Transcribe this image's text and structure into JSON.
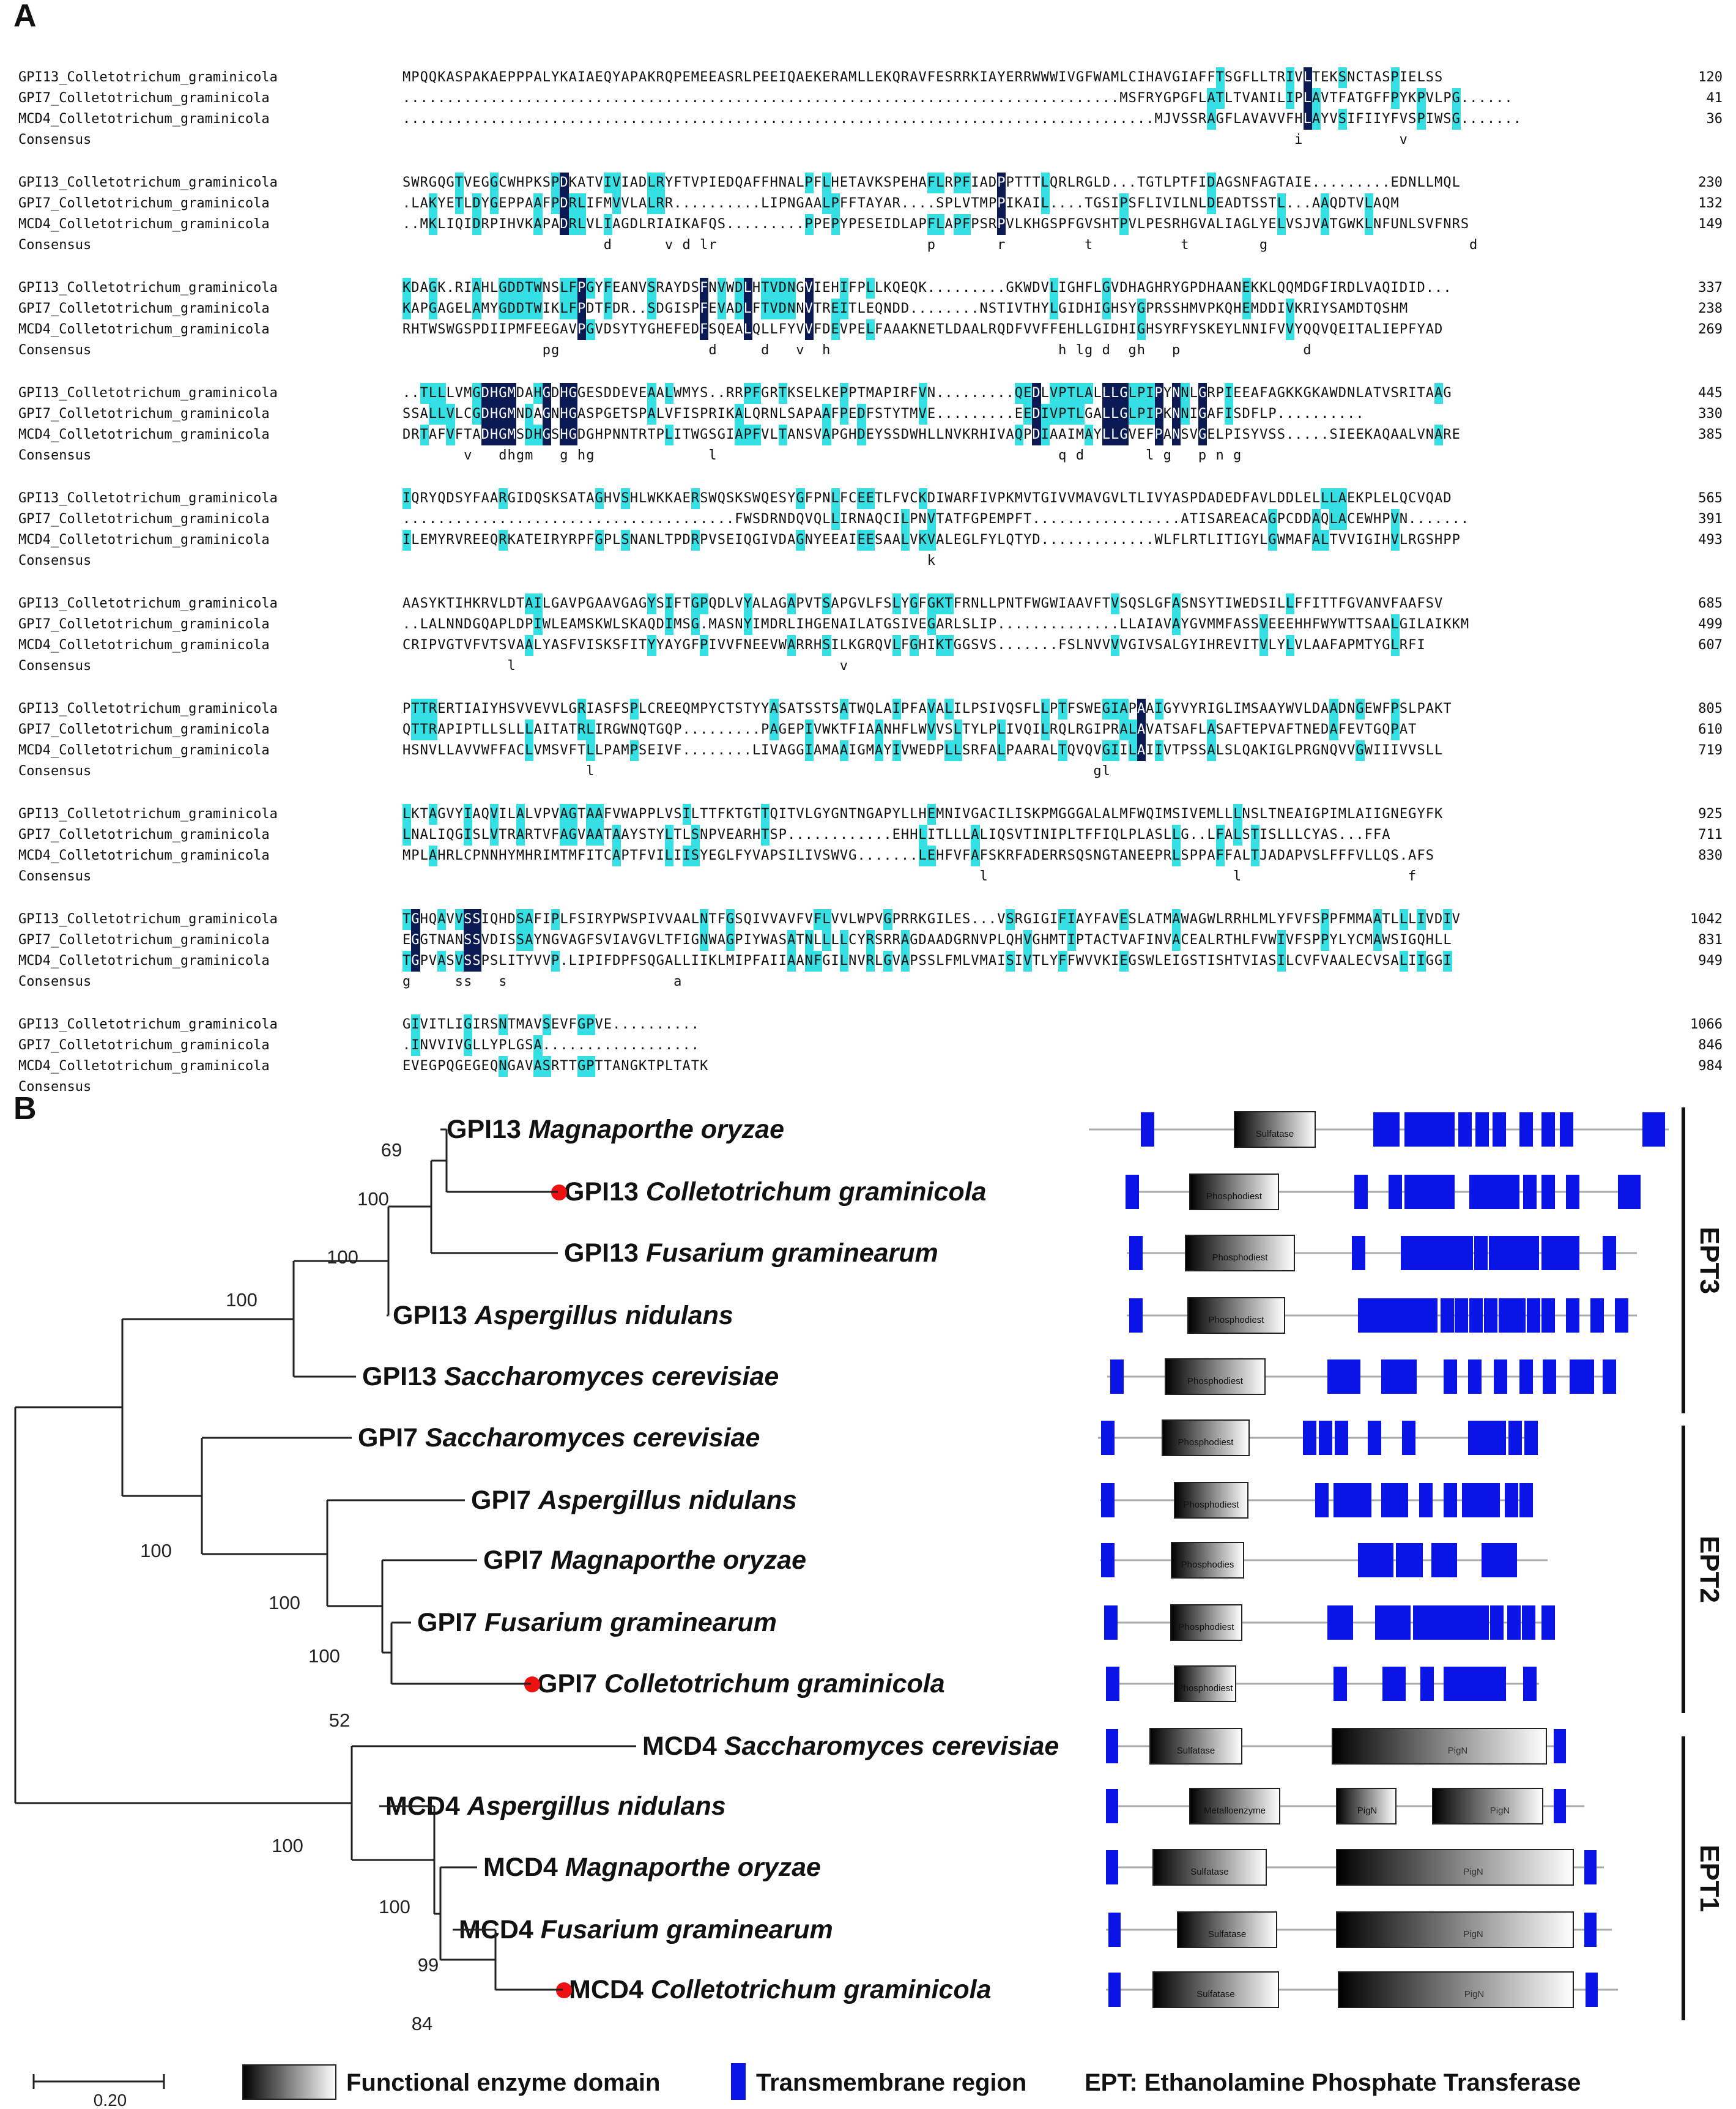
{
  "panel_a": {
    "label": "A",
    "blocks": [
      {
        "rows": [
          {
            "name": "GPI13_Colletotrichum_graminicola",
            "seq": "MPQQKASPAKAEPPPALYKAIAEQYAPAKRQPEMEEASRLPEEIQAEKERAMLLEKQRAVFESRRKIAYERRWWWIVGFWAMLCIHAVGIAFFTSGFLLTRIVLTEKSNCTASPIELSS",
            "num": "120"
          },
          {
            "name": "GPI7_Colletotrichum_graminicola",
            "seq": "..................................................................................MSFRYGPGFLATLTVANILIPLAVTFATGFFPYKPVLPG......",
            "num": "41"
          },
          {
            "name": "MCD4_Colletotrichum_graminicola",
            "seq": "......................................................................................MJVSSRAGFLAVAVVFHLAYVSIFIIYFVSPIWSG.......",
            "num": "36"
          },
          {
            "name": "Consensus",
            "seq": "                                                                                                      i           v        ",
            "num": ""
          }
        ]
      },
      {
        "rows": [
          {
            "name": "GPI13_Colletotrichum_graminicola",
            "seq": "SWRGQGTVEGGCWHPKSPDKATVIVIADLRYFTVPIEDQAFFHNALPFLHETAVKSPEHAFLRPFIADPPTTTLQRLRGLD...TGTLPTFIDAGSNFAGTAIE.........EDNLLMQL",
            "num": "230"
          },
          {
            "name": "GPI7_Colletotrichum_graminicola",
            "seq": ".LAKYETLDYGEPPAAFPDRLIFMVVLALRR..........LIPNGAALPFFTAYAR....SPLVTMPPIKAIL....TGSIPSFLIVILNLDEADTSSTL...AAQDTVLAQM",
            "num": "132"
          },
          {
            "name": "MCD4_Colletotrichum_graminicola",
            "seq": "..MKLIQIDRPIHVKAPADRLVLIAGDLRIAIKAFQS.........PPEPYPESEIDLAPFLAPFPSRPVLKHGSPFGVSHTPVLPESRHGVALIAGLYELVSJVATGWKLNFUNLSVFNRS",
            "num": "149"
          },
          {
            "name": "Consensus",
            "seq": "                       d      v d lr                        p       r         t          t        g                       d  ",
            "num": ""
          }
        ]
      },
      {
        "rows": [
          {
            "name": "GPI13_Colletotrichum_graminicola",
            "seq": "KDAGK.RIAHLGDDTWNSLFPGYFEANVSRAYDSFNVWDLHTVDNGVIEHIFPLLKQEQK.........GKWDVLIGHFLGVDHAGHRYGPDHAANEKKLQQMDGFIRDLVAQIDID...",
            "num": "337"
          },
          {
            "name": "GPI7_Colletotrichum_graminicola",
            "seq": "KAPGAGELAMYGDDTWIKLFPDTFDR..SDGISPFEVADLFTVDNNVTREITLEQNDD........NSTIVTHYLGIDHIGHSYGPRSSHMVPKQHEMDDIVKRIYSAMDTQSHM",
            "num": "238"
          },
          {
            "name": "MCD4_Colletotrichum_graminicola",
            "seq": "RHTWSWGSPDIIPMFEEGAVPGVDSYTYGHEFEDFSQEALQLLFYVVFDEVPELFAAAKNETLDAALRQDFVVFFEHLLGIDHIGHSYRFYSKEYLNNIFVVYQQVQEITALIEPFYAD",
            "num": "269"
          },
          {
            "name": "Consensus",
            "seq": "                pg                 d     d   v  h                          h lg d  gh   p              d                  ",
            "num": ""
          }
        ]
      },
      {
        "rows": [
          {
            "name": "GPI13_Colletotrichum_graminicola",
            "seq": "..TLLLVMGDHGMDAHGDHGGESDDEVEAALWMYS..RRPFGRTKSELKEPPTMAPIRFVN.........QEDLVPTLALLLGLPIPYNNLGRPIEEAFAGKKGKAWDNLATVSRITAAG",
            "num": "445"
          },
          {
            "name": "GPI7_Colletotrichum_graminicola",
            "seq": "SSALLVLCGDHGMNDAGNHGASPGETSPALVFISPRIKALQRNLSAPAAFPEDFSTYTMVE.........EEDIVPTLGALLGLPIPKNNIGAFISDFLP..........",
            "num": "330"
          },
          {
            "name": "MCD4_Colletotrichum_graminicola",
            "seq": "DRTAFVFTADHGMSDHGSHGDGHPNNTRTPLITWGSGIAPFVLTANSVAPGHDEYSSDWHLLNVKRHIVAQPDIAAIMAYLLGVEFPANSVGELPISYVSS.....SIEEKAQAALVNARE",
            "num": "385"
          },
          {
            "name": "Consensus",
            "seq": "       v   dhgm   g hg             l                                       q d       l g   p n g                        ",
            "num": ""
          }
        ]
      },
      {
        "rows": [
          {
            "name": "GPI13_Colletotrichum_graminicola",
            "seq": "IQRYQDSYFAARGIDQSKSATAGHVSHLWKKAERSWQSKSWQESYGFPNLFCEETLFVCKDIWARFIVPKMVTGIVVMAVGVLTLIVYASPDADEDFAVLDDLELLLAEKPLELQCVQAD",
            "num": "565"
          },
          {
            "name": "GPI7_Colletotrichum_graminicola",
            "seq": "......................................FWSDRNDQVQLLIRNAQCILPNVTATFGPEMPFT.................ATISAREACAGPCDDAQLACEWHPVN.......",
            "num": "391"
          },
          {
            "name": "MCD4_Colletotrichum_graminicola",
            "seq": "ILEMYRVREEQRKATEIRYRPFGPLSNANLTPDRPVSEIQGIVDAGNYEEAIEESAALVKVALEGLFYLQTYD.............WLFLRTLITIGYLGWMAFALTVVIGIHVLRGSHPP",
            "num": "493"
          },
          {
            "name": "Consensus",
            "seq": "                                                            k                                                           ",
            "num": ""
          }
        ]
      },
      {
        "rows": [
          {
            "name": "GPI13_Colletotrichum_graminicola",
            "seq": "AASYKTIHKRVLDTAILGAVPGAAVGAGYSIFTGPQDLVYALAGAPVTSAPGVLFSLYGFGKTFRNLLPNTFWGWIAAVFTVSQSLGFASNSYTIWEDSILLFFITTFGVANVFAAFSV",
            "num": "685"
          },
          {
            "name": "GPI7_Colletotrichum_graminicola",
            "seq": "..LALNNDGQAPLDPIWLEAMSKWLSKAQDIMSG.MASNYIMDRLIHGENAILATGSIVEGARLSLIP..............LLAIAVAYGVMMFASSVEEEHHFWYWTTSAALGILAIKKM",
            "num": "499"
          },
          {
            "name": "MCD4_Colletotrichum_graminicola",
            "seq": "CRIPVGTVFVTSVAALYASFVISKSFITYYAYGFPIVVFNEEVWARRHSILKGRQVLFGHIKTGGSVS.......FSLNVVVVGIVSALGYIHREVITVLYLVLAAFAPMTYGLRFI",
            "num": "607"
          },
          {
            "name": "Consensus",
            "seq": "            l                                     v                                                                     ",
            "num": ""
          }
        ]
      },
      {
        "rows": [
          {
            "name": "GPI13_Colletotrichum_graminicola",
            "seq": "PTTRERTIAIYHSVVEVVLGRIASFSPLCREEQMPYCTSTYYASATSSTSATWQLAIPFAVALILPSIVQSFLLPTFSWEGIAPAAIGYVYRIGLIMSAAYWVLDAADNGEWFPSLPAKT",
            "num": "805"
          },
          {
            "name": "GPI7_Colletotrichum_graminicola",
            "seq": "QTTRAPIPTLLSLLLAITATRLIRGWNQTGQP.........PAGEPIVWKTFIAANHFLWVVSLTYLPLIVQILRQLRGIPRALAVATSAFLASAFTEPVAFTNEDAFEVTGQPAT",
            "num": "610"
          },
          {
            "name": "MCD4_Colletotrichum_graminicola",
            "seq": "HSNVLLAVVWFFACLVMSVFTLLPAMPSEIVF........LIVAGGIAMAAIGMAYIVWEDPLLSRFALPAARALTQVQVGIILAIIVTPSSALSLQAKIGLPRGNQVVGWIIIVVSLL",
            "num": "719"
          },
          {
            "name": "Consensus",
            "seq": "                     l                                                         gl                                     ",
            "num": ""
          }
        ]
      },
      {
        "rows": [
          {
            "name": "GPI13_Colletotrichum_graminicola",
            "seq": "LKTAGVYIAQVILALVPVAGTAAFVWAPPLVSILTTFKTGTTQITVLGYGNTNGAPYLLHEMNIVGACILISKPMGGGALALMFWQIMSIVEMLLLNSLTNEAIGPIMLAIIGNEGYFK",
            "num": "925"
          },
          {
            "name": "GPI7_Colletotrichum_graminicola",
            "seq": "LNALIQGISLVTRARTVFAGVAATAAYSTYLTLSNPVEARHTSP............EHHLITLLLALIQSVTINIPLTFFIQLPLASLLG..LFALSTISLLLCYAS...FFA",
            "num": "711"
          },
          {
            "name": "MCD4_Colletotrichum_graminicola",
            "seq": "MPLAHRLCPNNHYMHRIMTMFITCAPTFVILIISYEGLFYVAPSILIVSWVG.......LEHFVFAFSKRFADERRSQSNGTANEEPRLSPPAFFALTJADAPVSLFFFVLLQS.AFS",
            "num": "830"
          },
          {
            "name": "Consensus",
            "seq": "                                                                  l                            l                   f      ",
            "num": ""
          }
        ]
      },
      {
        "rows": [
          {
            "name": "GPI13_Colletotrichum_graminicola",
            "seq": "TGHQAVVSSIQHDSAFIPLFSIRYPWSPIVVAALNTFGSQIVVAVFVFLVVLWPVGPRRKGILES...VSRGIGIFIAYFAVESLATMAWAGWLRRHLMLYFVFSPPFMMAATLLLIVDIV",
            "num": "1042"
          },
          {
            "name": "GPI7_Colletotrichum_graminicola",
            "seq": "EGGTNANSSVDISSAYNGVAGFSVIAVGVLTFIGNWAGPIYWASATNLLLLCYRSRRAGDAADGRNVPLQHVGHMTIPTACTVAFINVACEALRTHLFVWIVFSPPYLYCMAWSIGQHLL",
            "num": "831"
          },
          {
            "name": "MCD4_Colletotrichum_graminicola",
            "seq": "TGPVASVSSPSLITYVVP.LIPIFDPFSQGALLIIKLMIPFAIIAANFGILNVRLGVAPSSLFMLVMAISIVTLYFFWVVKIEGSWLEIGSTISHTVIASILCVFVAALECVSALIIGGI",
            "num": "949"
          },
          {
            "name": "Consensus",
            "seq": "g     ss   s                   a                                                                                       ",
            "num": ""
          }
        ]
      },
      {
        "rows": [
          {
            "name": "GPI13_Colletotrichum_graminicola",
            "seq": "GIVITLIGIRSNTMAVSEVFGPVE..........",
            "num": "1066"
          },
          {
            "name": "GPI7_Colletotrichum_graminicola",
            "seq": ".INVVIVGLLYPLGSA..................",
            "num": "846"
          },
          {
            "name": "MCD4_Colletotrichum_graminicola",
            "seq": "EVEGPQGEGEQNGAVASRTTGPTTANGKTPLTATK",
            "num": "984"
          },
          {
            "name": "Consensus",
            "seq": "                                   ",
            "num": ""
          }
        ]
      }
    ]
  },
  "panel_b": {
    "label": "B",
    "taxa": [
      {
        "gene": "GPI13",
        "species": "Magnaporthe oryzae",
        "marked": false
      },
      {
        "gene": "GPI13",
        "species": "Colletotrichum graminicola",
        "marked": true
      },
      {
        "gene": "GPI13",
        "species": "Fusarium graminearum",
        "marked": false
      },
      {
        "gene": "GPI13",
        "species": "Aspergillus nidulans",
        "marked": false
      },
      {
        "gene": "GPI13",
        "species": "Saccharomyces cerevisiae",
        "marked": false
      },
      {
        "gene": "GPI7",
        "species": "Saccharomyces cerevisiae",
        "marked": false
      },
      {
        "gene": "GPI7",
        "species": "Aspergillus nidulans",
        "marked": false
      },
      {
        "gene": "GPI7",
        "species": "Magnaporthe oryzae",
        "marked": false
      },
      {
        "gene": "GPI7",
        "species": "Fusarium graminearum",
        "marked": false
      },
      {
        "gene": "GPI7",
        "species": "Colletotrichum graminicola",
        "marked": true
      },
      {
        "gene": "MCD4",
        "species": "Saccharomyces cerevisiae",
        "marked": false
      },
      {
        "gene": "MCD4",
        "species": "Aspergillus nidulans",
        "marked": false
      },
      {
        "gene": "MCD4",
        "species": "Magnaporthe oryzae",
        "marked": false
      },
      {
        "gene": "MCD4",
        "species": "Fusarium graminearum",
        "marked": false
      },
      {
        "gene": "MCD4",
        "species": "Colletotrichum graminicola",
        "marked": true
      }
    ],
    "bootstrap": [
      "69",
      "100",
      "100",
      "100",
      "100",
      "100",
      "100",
      "52",
      "100",
      "100",
      "99",
      "84"
    ],
    "domains": [
      {
        "name": "Sulfatase"
      },
      {
        "name": "Phosphodiest"
      },
      {
        "name": "Phosphodiest"
      },
      {
        "name": "Phosphodiest"
      },
      {
        "name": "Phosphodiest"
      },
      {
        "name": "Phosphodiest"
      },
      {
        "name": "Phosphodiest"
      },
      {
        "name": "Phosphodies"
      },
      {
        "name": "Phosphodiest"
      },
      {
        "name": "Phosphodiest"
      },
      {
        "name": "Sulfatase",
        "second": "PigN"
      },
      {
        "name": "Metalloenzyme",
        "second": "PigN",
        "third": "PigN"
      },
      {
        "name": "Sulfatase",
        "second": "PigN"
      },
      {
        "name": "Sulfatase",
        "second": "PigN"
      },
      {
        "name": "Sulfatase",
        "second": "PigN"
      }
    ],
    "groups": [
      "EPT3",
      "EPT2",
      "EPT1"
    ],
    "scale_label": "0.20",
    "legend": {
      "domain_label": "Functional enzyme domain",
      "tm_label": "Transmembrane region",
      "ept_label": "EPT: Ethanolamine Phosphate Transferase"
    },
    "colors": {
      "tm": "#0a14e6",
      "marker": "#ee1111",
      "cons": "#0b1a52",
      "sim": "#34e0e4"
    }
  }
}
